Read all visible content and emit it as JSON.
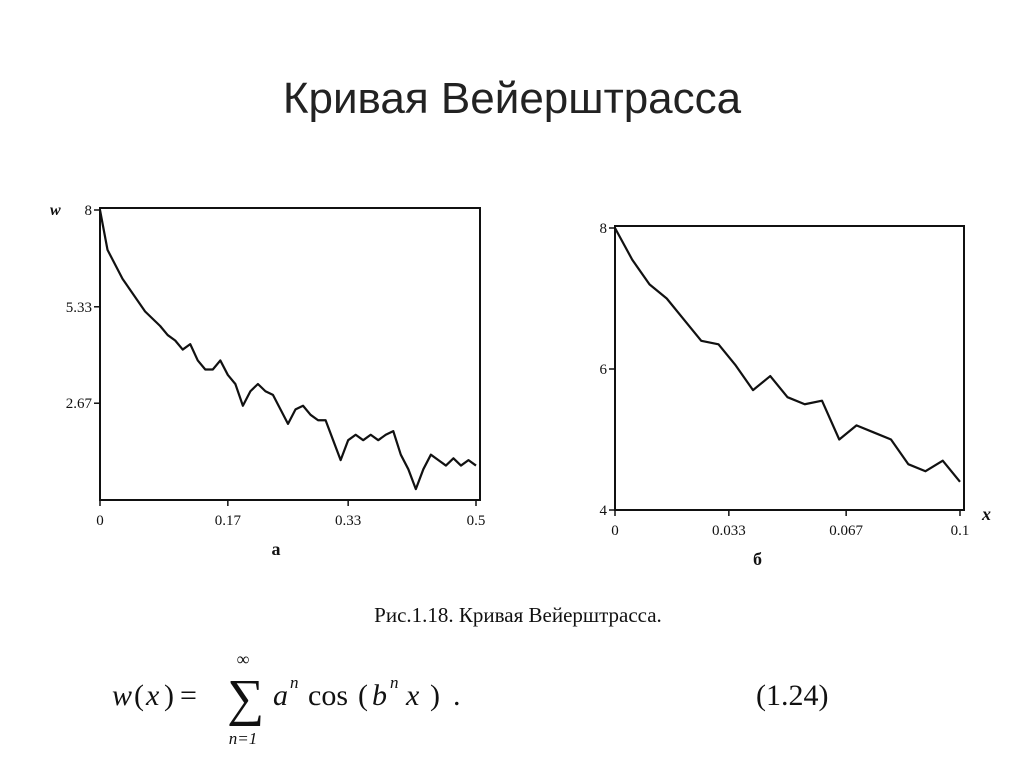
{
  "title": "Кривая Вейерштрасса",
  "chart_data": [
    {
      "type": "line",
      "ylabel": "w",
      "sublabel": "а",
      "color": "#111111",
      "x": [
        0,
        0.01,
        0.02,
        0.03,
        0.04,
        0.05,
        0.06,
        0.07,
        0.08,
        0.09,
        0.1,
        0.11,
        0.12,
        0.13,
        0.14,
        0.15,
        0.16,
        0.17,
        0.18,
        0.19,
        0.2,
        0.21,
        0.22,
        0.23,
        0.24,
        0.25,
        0.26,
        0.27,
        0.28,
        0.29,
        0.3,
        0.31,
        0.32,
        0.33,
        0.34,
        0.35,
        0.36,
        0.37,
        0.38,
        0.39,
        0.4,
        0.41,
        0.42,
        0.43,
        0.44,
        0.45,
        0.46,
        0.47,
        0.48,
        0.49,
        0.5
      ],
      "values": [
        8,
        6.9,
        6.5,
        6.1,
        5.8,
        5.5,
        5.2,
        5.0,
        4.8,
        4.55,
        4.4,
        4.15,
        4.3,
        3.85,
        3.6,
        3.6,
        3.85,
        3.45,
        3.2,
        2.6,
        3.0,
        3.2,
        3.0,
        2.9,
        2.5,
        2.1,
        2.5,
        2.6,
        2.35,
        2.2,
        2.2,
        1.65,
        1.1,
        1.65,
        1.8,
        1.65,
        1.8,
        1.65,
        1.8,
        1.9,
        1.25,
        0.85,
        0.3,
        0.85,
        1.25,
        1.1,
        0.95,
        1.15,
        0.95,
        1.1,
        0.95
      ],
      "xlim": [
        0,
        0.5
      ],
      "ylim": [
        0,
        8
      ],
      "xticks": [
        0,
        0.17,
        0.33,
        0.5
      ],
      "yticks": [
        2.67,
        5.33,
        8
      ]
    },
    {
      "type": "line",
      "xlabel": "x",
      "sublabel": "б",
      "color": "#111111",
      "x": [
        0,
        0.005,
        0.01,
        0.015,
        0.02,
        0.025,
        0.03,
        0.035,
        0.04,
        0.045,
        0.05,
        0.055,
        0.06,
        0.065,
        0.07,
        0.075,
        0.08,
        0.085,
        0.09,
        0.095,
        0.1
      ],
      "values": [
        8,
        7.55,
        7.2,
        7.0,
        6.7,
        6.4,
        6.35,
        6.05,
        5.7,
        5.9,
        5.6,
        5.5,
        5.55,
        5.0,
        5.2,
        5.1,
        5.0,
        4.65,
        4.55,
        4.7,
        4.4
      ],
      "xlim": [
        0,
        0.1
      ],
      "ylim": [
        4,
        8
      ],
      "xticks": [
        0,
        0.033,
        0.067,
        0.1
      ],
      "yticks": [
        4,
        6,
        8
      ]
    }
  ],
  "caption": "Рис.1.18. Кривая Вейерштрасса.",
  "formula": {
    "lhs": "w",
    "arg": "x",
    "equals": "=",
    "sum": "∑",
    "upper": "∞",
    "lower": "n=1",
    "base": "a",
    "exp1": "n",
    "func": "cos",
    "inner": "b",
    "exp2": "n",
    "var": "x",
    "end": ".",
    "number": "(1.24)"
  }
}
